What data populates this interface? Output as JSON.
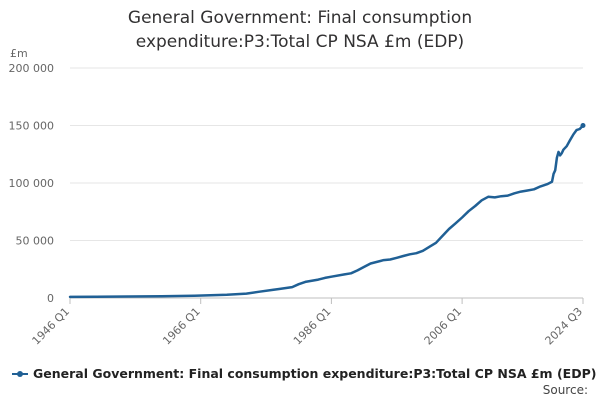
{
  "chart_data": {
    "type": "line",
    "title_line1": "General Government: Final consumption",
    "title_line2": "expenditure:P3:Total CP NSA £m (EDP)",
    "unit_label": "£m",
    "y_ticks": [
      "0",
      "50 000",
      "100 000",
      "150 000",
      "200 000"
    ],
    "y_tick_values": [
      0,
      50000,
      100000,
      150000,
      200000
    ],
    "ylim": [
      0,
      200000
    ],
    "x_ticks": [
      "1946 Q1",
      "1966 Q1",
      "1986 Q1",
      "2006 Q1",
      "2024 Q3"
    ],
    "x_tick_values": [
      1946.0,
      1966.0,
      1986.0,
      2006.0,
      2024.5
    ],
    "xlim": [
      1946.0,
      2024.5
    ],
    "series": [
      {
        "name": "General Government: Final consumption expenditure:P3:Total CP NSA £m (EDP)",
        "color": "#206095",
        "x": [
          1946,
          1950,
          1955,
          1960,
          1965,
          1970,
          1973,
          1975,
          1977,
          1978,
          1980,
          1981,
          1982,
          1984,
          1985,
          1986,
          1988,
          1989,
          1990,
          1991,
          1992,
          1994,
          1995,
          1996,
          1997,
          1998,
          1999,
          2000,
          2001,
          2002,
          2003,
          2004,
          2005,
          2006,
          2007,
          2008,
          2009,
          2010,
          2011,
          2012,
          2013,
          2014,
          2015,
          2016,
          2017,
          2018,
          2019,
          2019.75,
          2020,
          2020.25,
          2020.5,
          2020.75,
          2021,
          2021.25,
          2021.5,
          2022,
          2022.5,
          2023,
          2023.5,
          2024,
          2024.5
        ],
        "values": [
          1000,
          1100,
          1300,
          1600,
          2000,
          2900,
          3800,
          5500,
          7000,
          7800,
          9500,
          12000,
          14000,
          16000,
          17500,
          18500,
          20500,
          21500,
          24000,
          27000,
          30000,
          33000,
          33500,
          35000,
          36500,
          38000,
          39000,
          41000,
          44500,
          48000,
          54000,
          60000,
          65000,
          70000,
          75500,
          80000,
          85000,
          88000,
          87500,
          88500,
          89000,
          91000,
          92500,
          93500,
          94500,
          97000,
          99000,
          101000,
          108000,
          111000,
          122000,
          127000,
          124000,
          126000,
          129000,
          132000,
          137000,
          142000,
          146000,
          147000,
          150000
        ]
      }
    ],
    "source_label": "Source:"
  }
}
